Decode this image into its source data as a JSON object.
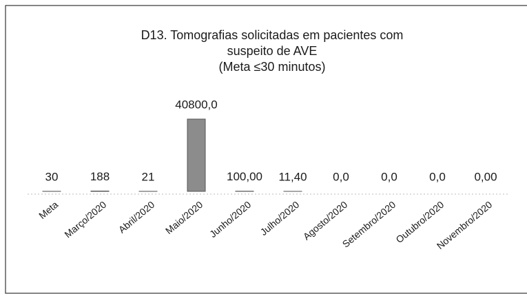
{
  "chart_data": {
    "type": "bar",
    "title_lines": [
      "D13. Tomografias solicitadas em pacientes com",
      "suspeito de AVE",
      "(Meta ≤30 minutos)"
    ],
    "categories": [
      "Meta",
      "Março/2020",
      "Abril/2020",
      "Maio/2020",
      "Junho/2020",
      "Julho/2020",
      "Agosto/2020",
      "Setembro/2020",
      "Outubro/2020",
      "Novembro/2020"
    ],
    "values": [
      30,
      188,
      21,
      40800,
      100,
      11.4,
      0,
      0,
      0,
      0
    ],
    "value_labels": [
      "30",
      "188",
      "21",
      "40800,0",
      "100,00",
      "11,40",
      "0,0",
      "0,0",
      "0,0",
      "0,00"
    ],
    "color": "#8c8c8c"
  }
}
